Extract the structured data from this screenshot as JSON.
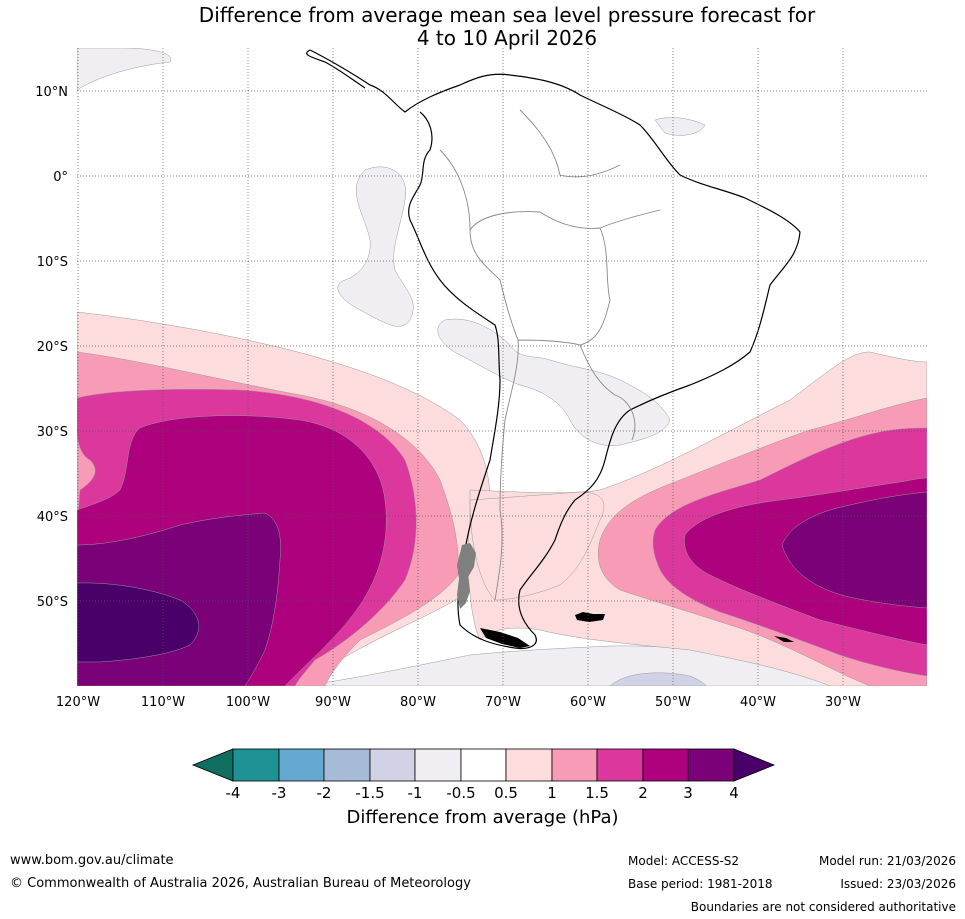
{
  "title_line1": "Difference from average mean sea level pressure forecast for",
  "title_line2": "4 to 10 April 2026",
  "map": {
    "lon_labels": [
      "120°W",
      "110°W",
      "100°W",
      "90°W",
      "80°W",
      "70°W",
      "60°W",
      "50°W",
      "40°W",
      "30°W"
    ],
    "lat_labels": [
      "10°N",
      "0°",
      "10°S",
      "20°S",
      "30°S",
      "40°S",
      "50°S"
    ]
  },
  "colorbar": {
    "title": "Difference from average (hPa)",
    "tick_labels": [
      "-4",
      "-3",
      "-2",
      "-1.5",
      "-1",
      "-0.5",
      "0.5",
      "1",
      "1.5",
      "2",
      "3",
      "4"
    ],
    "colors": {
      "below_-4": "#0f6e60",
      "-4_-3": "#1f9296",
      "-3_-2": "#66a9d0",
      "-2_-1.5": "#a5bbd8",
      "-1.5_-1": "#d1d2e6",
      "-1_-0.5": "#f1eef3",
      "-0.5_0.5": "#ffffff",
      "0.5_1": "#fcdcdc",
      "1_1.5": "#f89bb7",
      "1.5_2": "#dc379c",
      "2_3": "#ad017e",
      "3_4": "#7a0178",
      "above_4": "#490069"
    }
  },
  "footer": {
    "url": "www.bom.gov.au/climate",
    "copyright": "© Commonwealth of Australia 2026, Australian Bureau of Meteorology",
    "model": "Model: ACCESS-S2",
    "base_period": "Base period: 1981-2018",
    "model_run": "Model run: 21/03/2026",
    "issued": "Issued: 23/03/2026",
    "disclaimer": "Boundaries are not considered authoritative"
  }
}
